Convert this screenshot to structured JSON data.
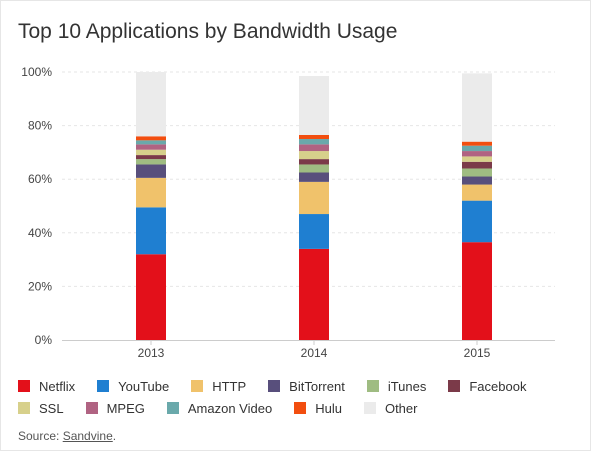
{
  "title": "Top 10 Applications by Bandwidth Usage",
  "chart_data": {
    "type": "bar",
    "stacked": true,
    "categories": [
      "2013",
      "2014",
      "2015"
    ],
    "ylim": [
      0,
      100
    ],
    "yticks": [
      "0%",
      "20%",
      "40%",
      "60%",
      "80%",
      "100%"
    ],
    "ytick_values": [
      0,
      20,
      40,
      60,
      80,
      100
    ],
    "grid": true,
    "legend_position": "bottom",
    "series": [
      {
        "name": "Netflix",
        "color": "#e3101a",
        "values": [
          32,
          34,
          36.5
        ]
      },
      {
        "name": "YouTube",
        "color": "#1f7fd1",
        "values": [
          17.5,
          13,
          15.5
        ]
      },
      {
        "name": "HTTP",
        "color": "#f0c26b",
        "values": [
          11,
          12,
          6
        ]
      },
      {
        "name": "BitTorrent",
        "color": "#584f7c",
        "values": [
          5,
          3.5,
          3
        ]
      },
      {
        "name": "iTunes",
        "color": "#9fbc82",
        "values": [
          2,
          3,
          3
        ]
      },
      {
        "name": "Facebook",
        "color": "#7b3a49",
        "values": [
          1.5,
          2,
          2.5
        ]
      },
      {
        "name": "SSL",
        "color": "#d7d08b",
        "values": [
          2,
          3,
          2
        ]
      },
      {
        "name": "MPEG",
        "color": "#b06382",
        "values": [
          2,
          2.5,
          2
        ]
      },
      {
        "name": "Amazon Video",
        "color": "#6aa9ab",
        "values": [
          1.5,
          2,
          2
        ]
      },
      {
        "name": "Hulu",
        "color": "#f24e0f",
        "values": [
          1.5,
          1.5,
          1.5
        ]
      },
      {
        "name": "Other",
        "color": "#ebebeb",
        "values": [
          24,
          22,
          25.5
        ]
      }
    ]
  },
  "source": {
    "prefix": "Source: ",
    "link": "Sandvine",
    "suffix": "."
  }
}
